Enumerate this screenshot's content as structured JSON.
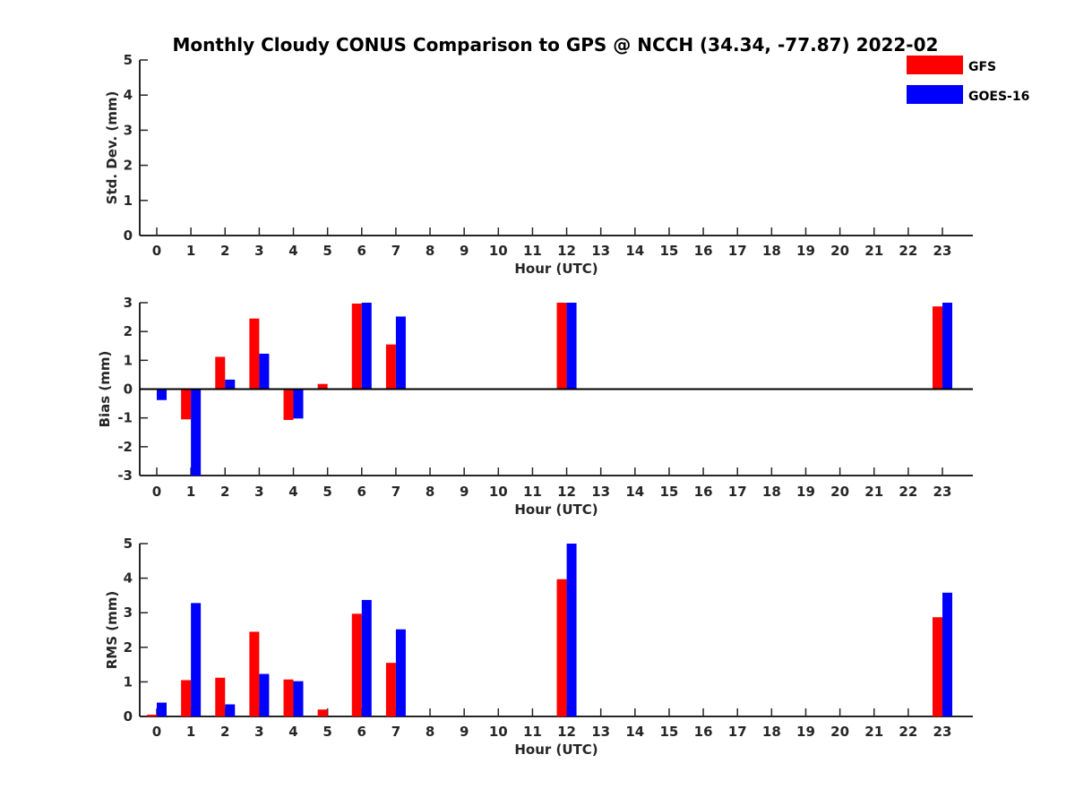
{
  "chart_data": {
    "title": "Monthly Cloudy CONUS Comparison to GPS @ NCCH (34.34, -77.87) 2022-02",
    "legend": [
      {
        "label": "GFS",
        "color": "#ff0000"
      },
      {
        "label": "GOES-16",
        "color": "#0000ff"
      }
    ],
    "legend_position": "top-right",
    "hours": [
      "0",
      "1",
      "2",
      "3",
      "4",
      "5",
      "6",
      "7",
      "8",
      "9",
      "10",
      "11",
      "12",
      "13",
      "14",
      "15",
      "16",
      "17",
      "18",
      "19",
      "20",
      "21",
      "22",
      "23"
    ],
    "panels": [
      {
        "type": "bar",
        "name": "std-dev",
        "xlabel": "Hour (UTC)",
        "ylabel": "Std. Dev. (mm)",
        "ylim": [
          0,
          5
        ],
        "yticks": [
          "0",
          "1",
          "2",
          "3",
          "4",
          "5"
        ],
        "series": [
          {
            "name": "GFS",
            "color": "#ff0000",
            "values": [
              null,
              null,
              null,
              null,
              null,
              null,
              null,
              null,
              null,
              null,
              null,
              null,
              null,
              null,
              null,
              null,
              null,
              null,
              null,
              null,
              null,
              null,
              null,
              null
            ]
          },
          {
            "name": "GOES-16",
            "color": "#0000ff",
            "values": [
              null,
              null,
              null,
              null,
              null,
              null,
              null,
              null,
              null,
              null,
              null,
              null,
              null,
              null,
              null,
              null,
              null,
              null,
              null,
              null,
              null,
              null,
              null,
              null
            ]
          }
        ]
      },
      {
        "type": "bar",
        "name": "bias",
        "xlabel": "Hour (UTC)",
        "ylabel": "Bias (mm)",
        "ylim": [
          -3,
          3
        ],
        "yticks": [
          "-3",
          "-2",
          "-1",
          "0",
          "1",
          "2",
          "3"
        ],
        "zero_line": true,
        "series": [
          {
            "name": "GFS",
            "color": "#ff0000",
            "values": [
              0.0,
              -1.05,
              1.12,
              2.45,
              -1.07,
              0.18,
              2.97,
              1.55,
              null,
              null,
              null,
              null,
              3.0,
              null,
              null,
              null,
              null,
              null,
              null,
              null,
              null,
              null,
              null,
              2.87
            ]
          },
          {
            "name": "GOES-16",
            "color": "#0000ff",
            "values": [
              -0.38,
              -3.0,
              0.33,
              1.23,
              -1.02,
              null,
              3.0,
              2.52,
              null,
              null,
              null,
              null,
              3.0,
              null,
              null,
              null,
              null,
              null,
              null,
              null,
              null,
              null,
              null,
              3.0
            ]
          }
        ]
      },
      {
        "type": "bar",
        "name": "rms",
        "xlabel": "Hour (UTC)",
        "ylabel": "RMS (mm)",
        "ylim": [
          0,
          5
        ],
        "yticks": [
          "0",
          "1",
          "2",
          "3",
          "4",
          "5"
        ],
        "series": [
          {
            "name": "GFS",
            "color": "#ff0000",
            "values": [
              0.05,
              1.05,
              1.12,
              2.45,
              1.07,
              0.2,
              2.97,
              1.55,
              null,
              null,
              null,
              null,
              3.97,
              null,
              null,
              null,
              null,
              null,
              null,
              null,
              null,
              null,
              null,
              2.87
            ]
          },
          {
            "name": "GOES-16",
            "color": "#0000ff",
            "values": [
              0.4,
              3.28,
              0.35,
              1.23,
              1.02,
              null,
              3.37,
              2.52,
              null,
              null,
              null,
              null,
              5.0,
              null,
              null,
              null,
              null,
              null,
              null,
              null,
              null,
              null,
              null,
              3.58
            ]
          }
        ]
      }
    ]
  }
}
